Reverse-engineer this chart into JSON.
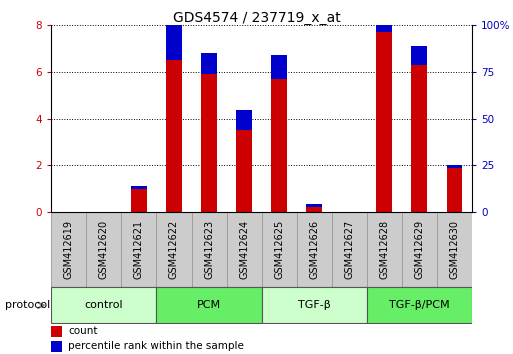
{
  "title": "GDS4574 / 237719_x_at",
  "samples": [
    "GSM412619",
    "GSM412620",
    "GSM412621",
    "GSM412622",
    "GSM412623",
    "GSM412624",
    "GSM412625",
    "GSM412626",
    "GSM412627",
    "GSM412628",
    "GSM412629",
    "GSM412630"
  ],
  "count_values": [
    0,
    0,
    1.0,
    6.5,
    5.9,
    3.5,
    5.7,
    0.22,
    0,
    7.7,
    6.3,
    1.9
  ],
  "percentile_values": [
    0,
    0,
    0.14,
    1.55,
    0.9,
    0.85,
    1.0,
    0.14,
    0,
    1.5,
    0.8,
    0.14
  ],
  "bar_width": 0.45,
  "ylim": [
    0,
    8
  ],
  "y2lim": [
    0,
    100
  ],
  "yticks": [
    0,
    2,
    4,
    6,
    8
  ],
  "y2ticks": [
    0,
    25,
    50,
    75,
    100
  ],
  "y2ticklabels": [
    "0",
    "25",
    "50",
    "75",
    "100%"
  ],
  "count_color": "#cc0000",
  "percentile_color": "#0000cc",
  "grid_color": "#000000",
  "protocol_groups": [
    {
      "label": "control",
      "start": 0,
      "end": 3,
      "color": "#ccffcc"
    },
    {
      "label": "PCM",
      "start": 3,
      "end": 6,
      "color": "#66ee66"
    },
    {
      "label": "TGF-β",
      "start": 6,
      "end": 9,
      "color": "#ccffcc"
    },
    {
      "label": "TGF-β/PCM",
      "start": 9,
      "end": 12,
      "color": "#66ee66"
    }
  ],
  "legend_items": [
    {
      "label": "count",
      "color": "#cc0000"
    },
    {
      "label": "percentile rank within the sample",
      "color": "#0000cc"
    }
  ],
  "protocol_label": "protocol",
  "bg_color": "#ffffff",
  "plot_bg_color": "#ffffff",
  "tick_color_left": "#cc0000",
  "tick_color_right": "#0000bb",
  "title_fontsize": 10,
  "tick_fontsize": 7.5,
  "label_fontsize": 7,
  "proto_fontsize": 8
}
